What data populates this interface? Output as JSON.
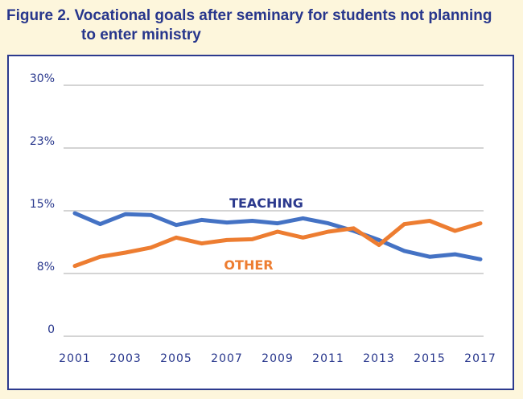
{
  "figure": {
    "title_line1": "Figure 2. Vocational goals after seminary for students not planning",
    "title_line2": "to enter ministry"
  },
  "chart_data": {
    "type": "line",
    "x": [
      2001,
      2002,
      2003,
      2004,
      2005,
      2006,
      2007,
      2008,
      2009,
      2010,
      2011,
      2012,
      2013,
      2014,
      2015,
      2016,
      2017
    ],
    "x_tick_labels": [
      "2001",
      "2003",
      "2005",
      "2007",
      "2009",
      "2011",
      "2013",
      "2015",
      "2017"
    ],
    "y_tick_labels": [
      "0",
      "8%",
      "15%",
      "23%",
      "30%"
    ],
    "ylim": [
      0,
      30
    ],
    "grid": true,
    "series": [
      {
        "name": "TEACHING",
        "color": "#4472c4",
        "values": [
          14.7,
          13.4,
          14.6,
          14.5,
          13.3,
          13.9,
          13.6,
          13.8,
          13.5,
          14.1,
          13.5,
          12.6,
          11.5,
          10.2,
          9.5,
          9.8,
          9.2
        ]
      },
      {
        "name": "OTHER",
        "color": "#ed7d31",
        "values": [
          8.4,
          9.5,
          10.0,
          10.6,
          11.8,
          11.1,
          11.5,
          11.6,
          12.5,
          11.8,
          12.5,
          12.9,
          10.9,
          13.4,
          13.8,
          12.6,
          13.5
        ]
      }
    ]
  }
}
